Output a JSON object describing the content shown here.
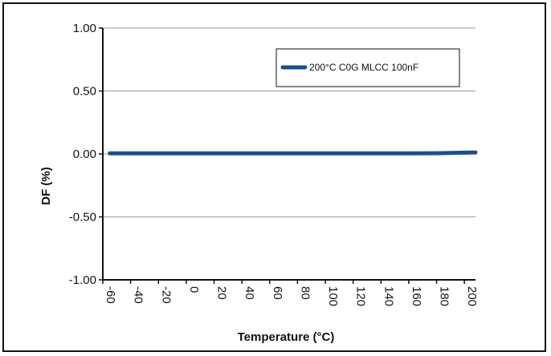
{
  "chart_data": {
    "type": "line",
    "title": "",
    "xlabel": "Temperature (°C)",
    "ylabel": "DF (%)",
    "xlim": [
      -60,
      208
    ],
    "ylim": [
      -1.0,
      1.0
    ],
    "x_ticks": [
      -60,
      -40,
      -20,
      0,
      20,
      40,
      60,
      80,
      100,
      120,
      140,
      160,
      180,
      200
    ],
    "y_ticks": [
      1.0,
      0.5,
      0.0,
      -0.5,
      -1.0
    ],
    "y_tick_labels": [
      "1.00",
      "0.50",
      "0.00",
      "-0.50",
      "-1.00"
    ],
    "grid": "horizontal",
    "legend_position": "top-right",
    "series": [
      {
        "name": "200°C C0G MLCC 100nF",
        "color": "#1f4e8c",
        "x": [
          -55,
          -40,
          -20,
          0,
          20,
          40,
          60,
          80,
          100,
          120,
          140,
          160,
          180,
          200,
          208
        ],
        "y": [
          0.005,
          0.005,
          0.005,
          0.005,
          0.005,
          0.005,
          0.005,
          0.005,
          0.005,
          0.005,
          0.005,
          0.005,
          0.006,
          0.01,
          0.012
        ]
      }
    ]
  }
}
